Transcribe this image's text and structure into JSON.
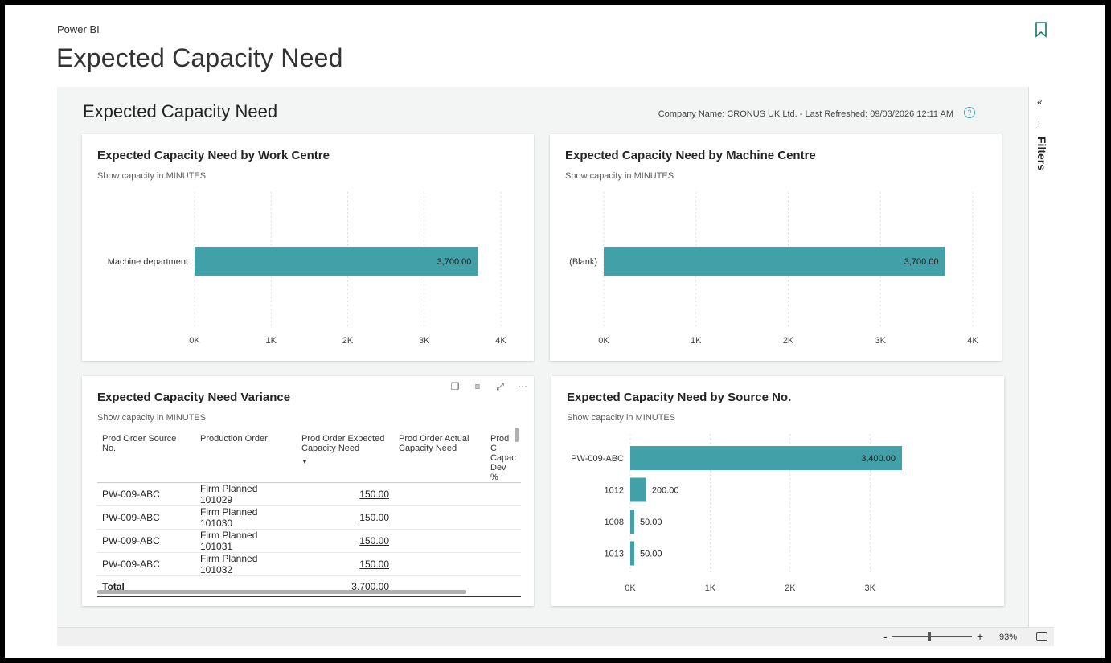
{
  "app": {
    "label": "Power BI",
    "title": "Expected Capacity Need"
  },
  "report": {
    "title": "Expected Capacity Need",
    "meta": "Company Name: CRONUS UK Ltd. - Last Refreshed: 09/03/2026 12:11 AM",
    "help_icon": "?"
  },
  "cards": {
    "work_centre": {
      "title": "Expected Capacity Need by Work Centre",
      "subtitle": "Show capacity in MINUTES"
    },
    "machine_centre": {
      "title": "Expected Capacity Need by Machine Centre",
      "subtitle": "Show capacity in MINUTES"
    },
    "variance": {
      "title": "Expected Capacity Need Variance",
      "subtitle": "Show capacity in MINUTES"
    },
    "source_no": {
      "title": "Expected Capacity Need by Source No.",
      "subtitle": "Show capacity in MINUTES"
    }
  },
  "chart_data": [
    {
      "type": "bar",
      "orientation": "horizontal",
      "title": "Expected Capacity Need by Work Centre",
      "subtitle": "Show capacity in MINUTES",
      "categories": [
        "Machine department"
      ],
      "values": [
        3700
      ],
      "value_labels": [
        "3,700.00"
      ],
      "xlim": [
        0,
        4000
      ],
      "ticks": [
        "0K",
        "1K",
        "2K",
        "3K",
        "4K"
      ]
    },
    {
      "type": "bar",
      "orientation": "horizontal",
      "title": "Expected Capacity Need by Machine Centre",
      "subtitle": "Show capacity in MINUTES",
      "categories": [
        "(Blank)"
      ],
      "values": [
        3700
      ],
      "value_labels": [
        "3,700.00"
      ],
      "xlim": [
        0,
        4000
      ],
      "ticks": [
        "0K",
        "1K",
        "2K",
        "3K",
        "4K"
      ]
    },
    {
      "type": "bar",
      "orientation": "horizontal",
      "title": "Expected Capacity Need by Source No.",
      "subtitle": "Show capacity in MINUTES",
      "categories": [
        "PW-009-ABC",
        "1012",
        "1008",
        "1013"
      ],
      "values": [
        3400,
        200,
        50,
        50
      ],
      "value_labels": [
        "3,400.00",
        "200.00",
        "50.00",
        "50.00"
      ],
      "xlim": [
        0,
        3500
      ],
      "ticks": [
        "0K",
        "1K",
        "2K",
        "3K"
      ]
    }
  ],
  "variance_table": {
    "headers": [
      "Prod Order Source No.",
      "Production Order",
      "Prod Order Expected Capacity Need",
      "Prod Order Actual Capacity Need",
      "Prod C Capac Dev %"
    ],
    "rows": [
      [
        "PW-009-ABC",
        "Firm Planned 101029",
        "150.00"
      ],
      [
        "PW-009-ABC",
        "Firm Planned 101030",
        "150.00"
      ],
      [
        "PW-009-ABC",
        "Firm Planned 101031",
        "150.00"
      ],
      [
        "PW-009-ABC",
        "Firm Planned 101032",
        "150.00"
      ]
    ],
    "total_label": "Total",
    "total_value": "3,700.00"
  },
  "filters": {
    "label": "Filters"
  },
  "status": {
    "zoom_minus": "-",
    "zoom_plus": "+",
    "zoom_level": "93%"
  },
  "colors": {
    "bar": "#42a0a8",
    "accent": "#117865"
  }
}
